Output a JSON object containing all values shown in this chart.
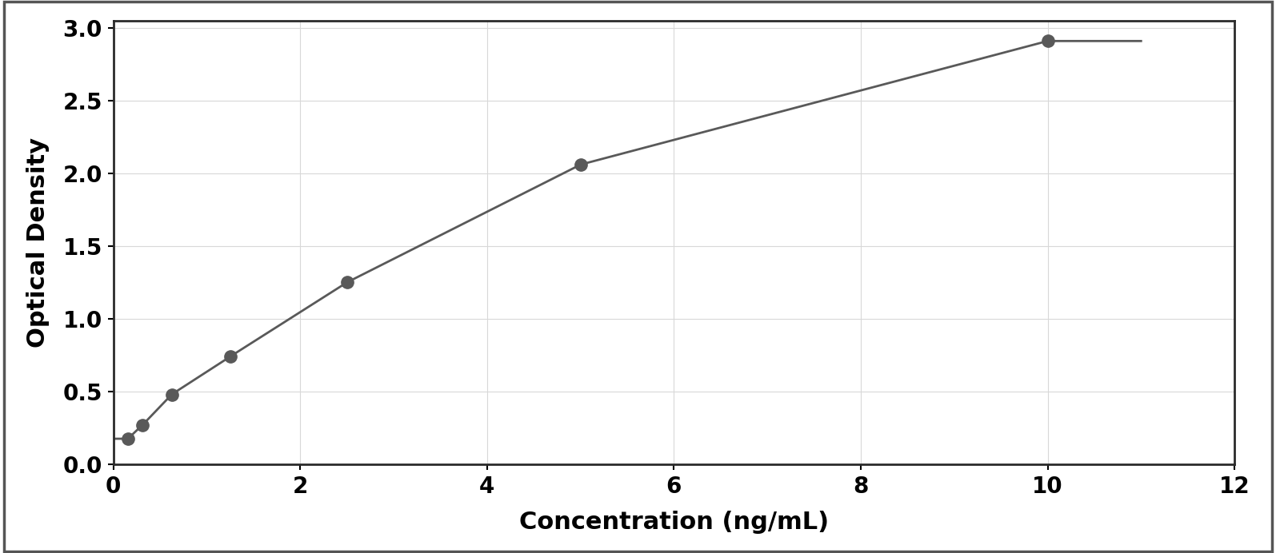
{
  "x_data": [
    0.156,
    0.313,
    0.625,
    1.25,
    2.5,
    5.0,
    10.0
  ],
  "y_data": [
    0.175,
    0.27,
    0.48,
    0.74,
    1.25,
    2.06,
    2.91
  ],
  "point_color": "#595959",
  "line_color": "#595959",
  "xlabel": "Concentration (ng/mL)",
  "ylabel": "Optical Density",
  "xlim": [
    0,
    12
  ],
  "ylim": [
    0,
    3.05
  ],
  "xticks": [
    0,
    2,
    4,
    6,
    8,
    10,
    12
  ],
  "yticks": [
    0,
    0.5,
    1.0,
    1.5,
    2.0,
    2.5,
    3.0
  ],
  "xlabel_fontsize": 22,
  "ylabel_fontsize": 22,
  "tick_fontsize": 20,
  "marker_size": 11,
  "line_width": 2.0,
  "figure_bg": "#ffffff",
  "axes_bg": "#ffffff",
  "border_color": "#2b2b2b",
  "grid_color": "#d8d8d8",
  "grid_linewidth": 0.8,
  "outer_border_color": "#555555",
  "outer_border_linewidth": 2.0
}
